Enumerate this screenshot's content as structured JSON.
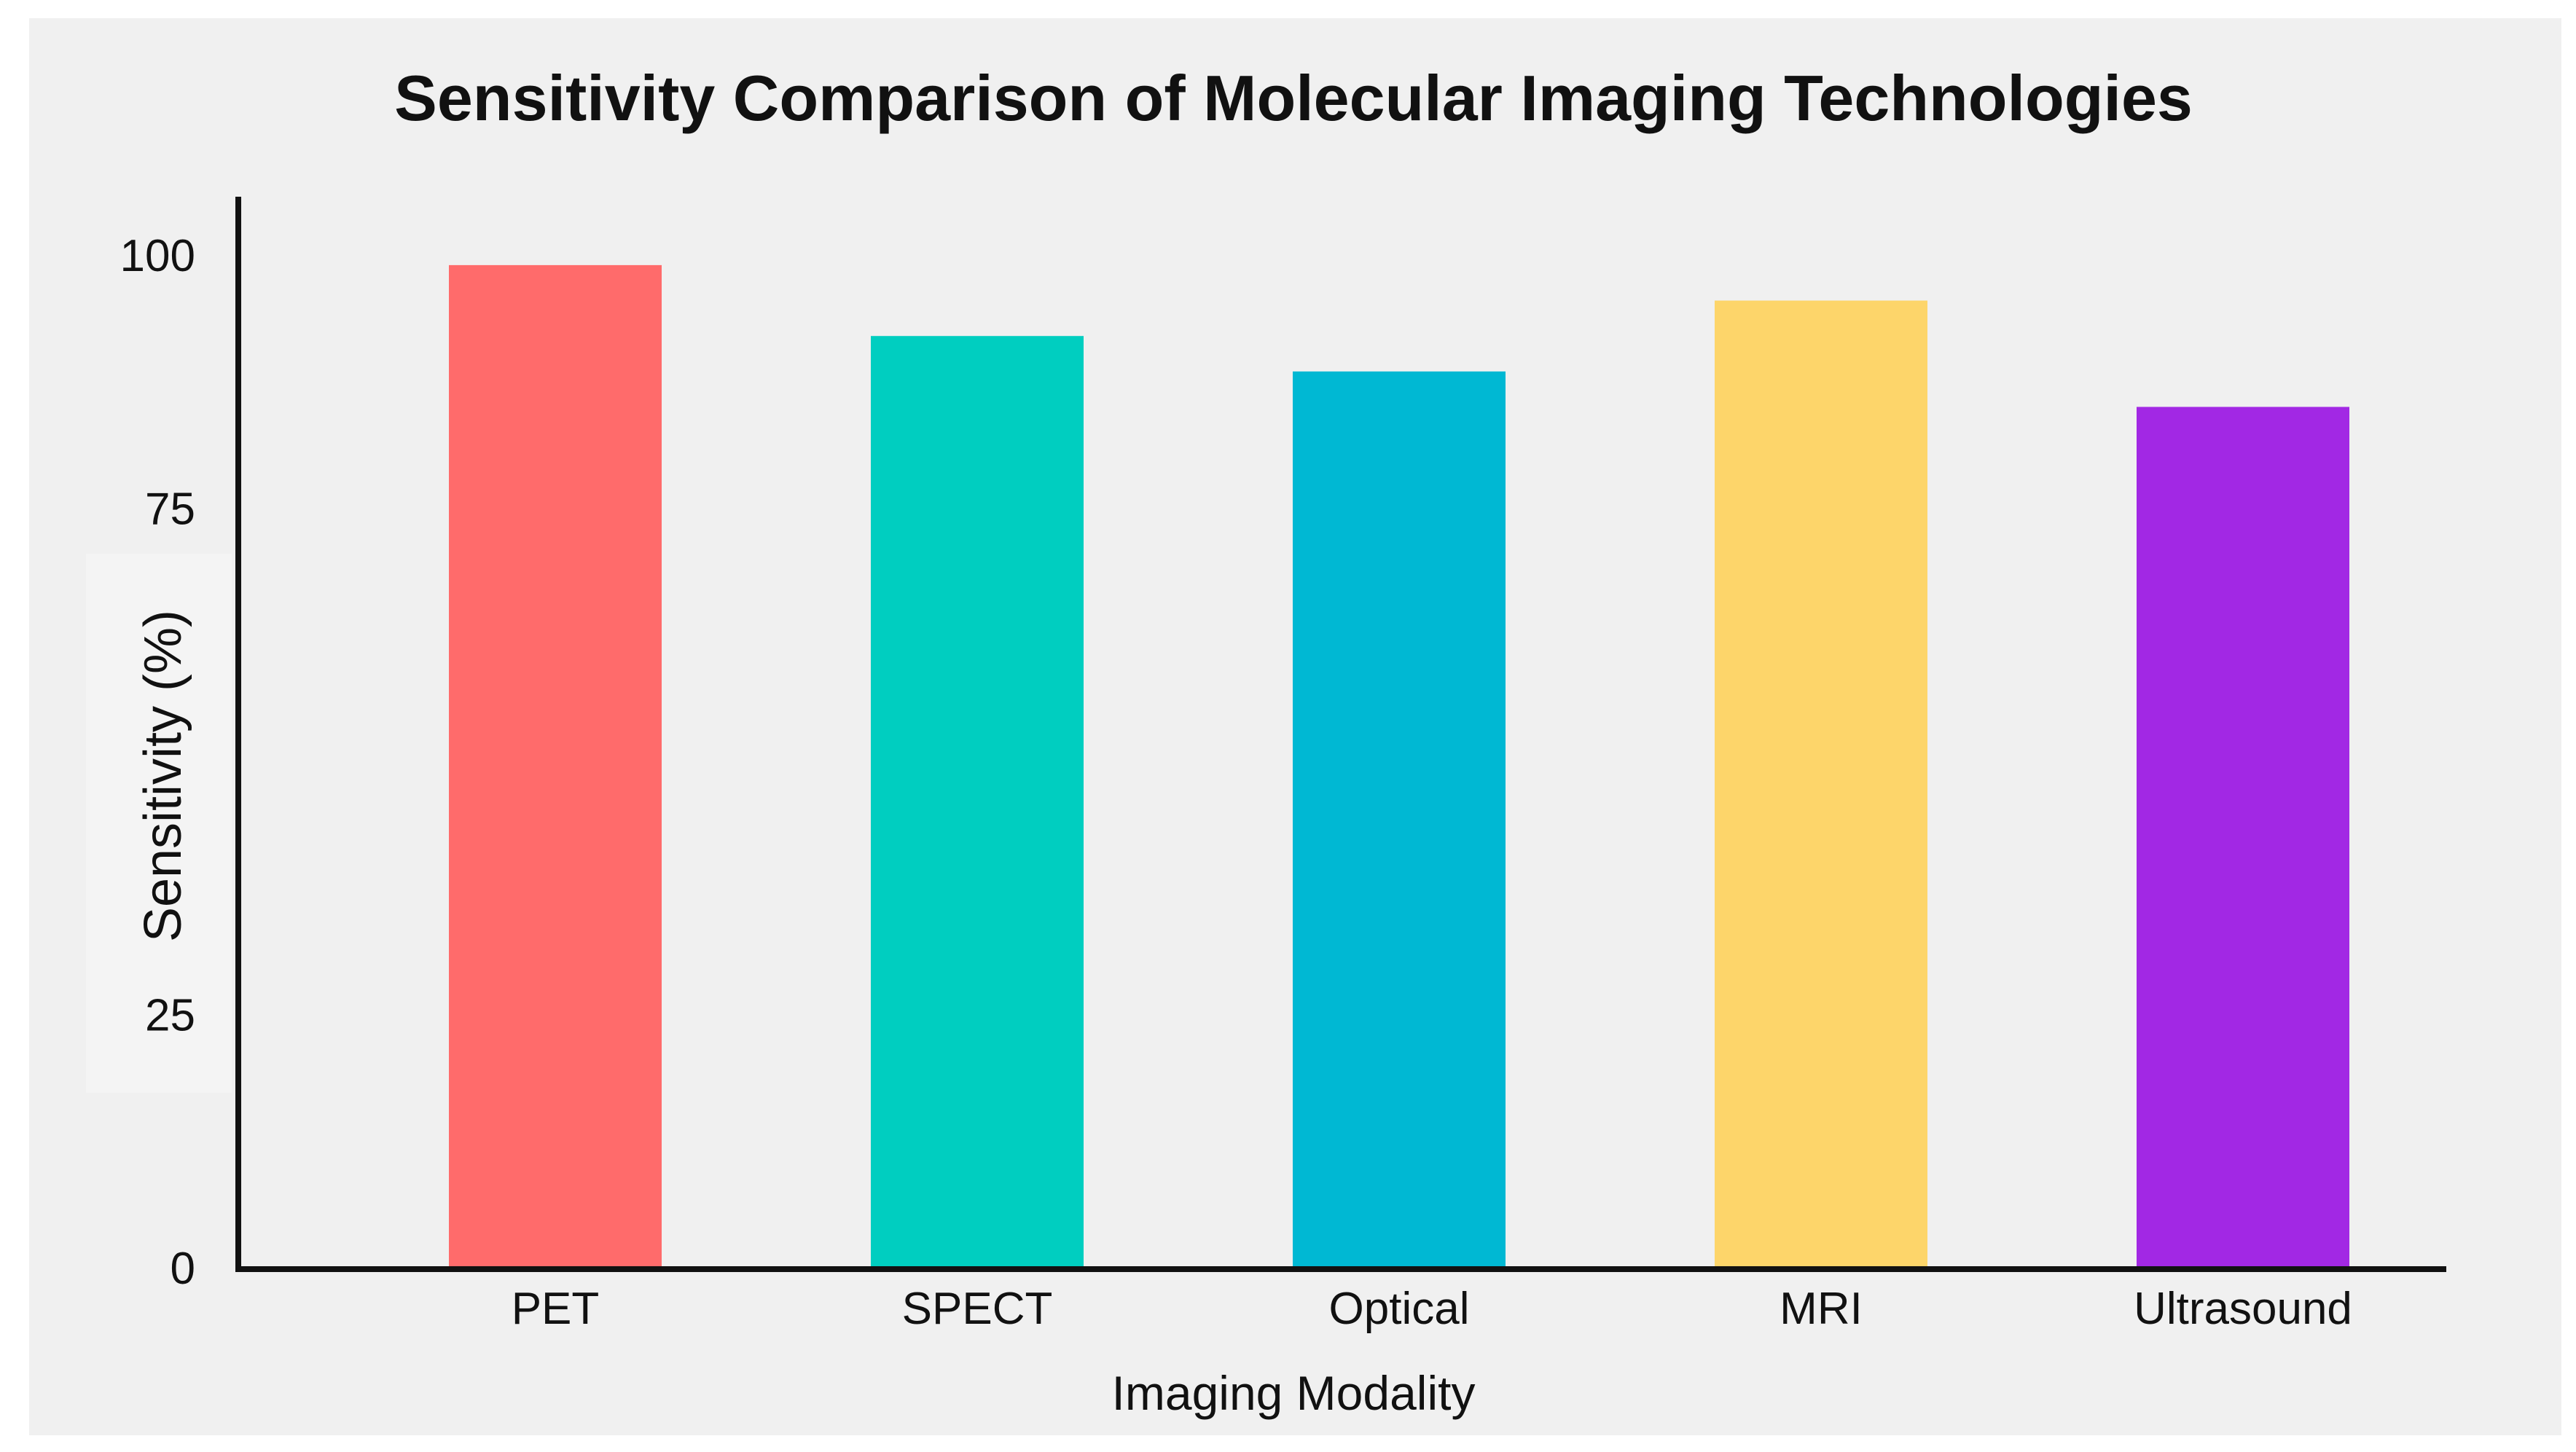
{
  "chart_data": {
    "type": "bar",
    "title": "Sensitivity Comparison of Molecular Imaging Technologies",
    "xlabel": "Imaging Modality",
    "ylabel": "Sensitivity (%)",
    "categories": [
      "PET",
      "SPECT",
      "Optical",
      "MRI",
      "Ultrasound"
    ],
    "values": [
      99,
      92,
      88.5,
      95.5,
      85
    ],
    "colors": [
      "#FF6B6B",
      "#00CEC0",
      "#00B8D3",
      "#FDD56A",
      "#A228E4"
    ],
    "yticks": [
      {
        "value": 0,
        "label": "0"
      },
      {
        "value": 25,
        "label": "25"
      },
      {
        "value": 75,
        "label": "75"
      },
      {
        "value": 100,
        "label": "100"
      }
    ],
    "ylim": [
      0,
      100
    ],
    "grid": false,
    "legend": "none",
    "background": "#F0F0F0"
  }
}
